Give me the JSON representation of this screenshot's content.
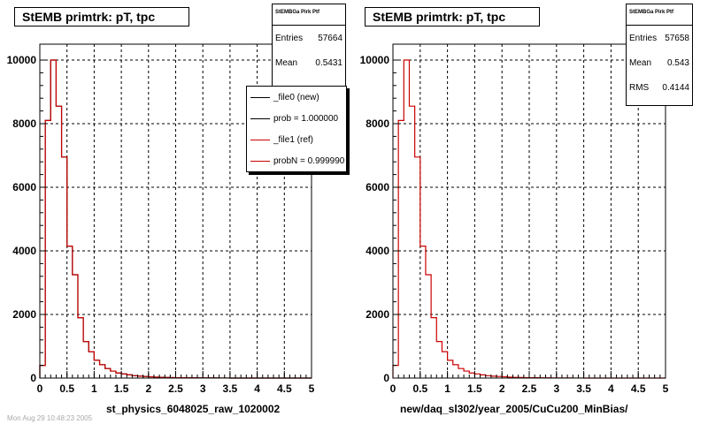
{
  "panels": [
    {
      "title": "StEMB primtrk: pT, tpc",
      "xlabel": "st_physics_6048025_raw_1020002",
      "stats": {
        "name": "StEMBGa Pirk Ptf",
        "rows": [
          {
            "label": "Entries",
            "value": "57664"
          },
          {
            "label": "Mean",
            "value": "0.5431"
          }
        ]
      },
      "legend": [
        {
          "label": "_file0 (new)",
          "color": "#000000"
        },
        {
          "label": "prob = 1.000000",
          "color": "#000000"
        },
        {
          "label": "_file1 (ref)",
          "color": "#cc0000"
        },
        {
          "label": "probN = 0.999990",
          "color": "#cc0000"
        }
      ]
    },
    {
      "title": "StEMB primtrk: pT, tpc",
      "xlabel": "new/daq_sl302/year_2005/CuCu200_MinBias/",
      "stats": {
        "name": "StEMBGa Pirk Ptf",
        "rows": [
          {
            "label": "Entries",
            "value": "57658"
          },
          {
            "label": "Mean",
            "value": "0.543"
          },
          {
            "label": "RMS",
            "value": "0.4144"
          }
        ]
      },
      "legend": []
    }
  ],
  "footer": "Mon Aug 29 10:48:23 2005",
  "chart_data": [
    {
      "type": "histogram",
      "title": "StEMB primtrk: pT, tpc",
      "xlabel": "st_physics_6048025_raw_1020002",
      "ylabel": "",
      "xlim": [
        0,
        5
      ],
      "ylim": [
        0,
        10000
      ],
      "xticks": [
        "0",
        "0.5",
        "1",
        "1.5",
        "2",
        "2.5",
        "3",
        "3.5",
        "4",
        "4.5",
        "5"
      ],
      "yticks": [
        "0",
        "2000",
        "4000",
        "6000",
        "8000",
        "10000"
      ],
      "grid": true,
      "bin_width": 0.1,
      "series": [
        {
          "name": "_file0 (new)",
          "color": "#000000",
          "values": [
            400,
            8100,
            10000,
            8550,
            6950,
            4150,
            3250,
            1900,
            1150,
            830,
            560,
            420,
            300,
            220,
            160,
            130,
            100,
            75,
            60,
            50,
            40,
            30,
            22,
            18,
            15,
            12,
            10,
            8,
            6,
            5,
            4,
            3,
            3,
            2,
            2,
            1,
            1,
            1,
            1,
            0,
            0,
            0,
            0,
            0,
            0,
            0,
            0,
            0,
            0,
            0
          ]
        },
        {
          "name": "_file1 (ref)",
          "color": "#cc0000",
          "values": [
            400,
            8100,
            10000,
            8550,
            6950,
            4150,
            3250,
            1900,
            1150,
            830,
            560,
            420,
            300,
            220,
            160,
            130,
            100,
            75,
            60,
            50,
            40,
            30,
            22,
            18,
            15,
            12,
            10,
            8,
            6,
            5,
            4,
            3,
            3,
            2,
            2,
            1,
            1,
            1,
            1,
            0,
            0,
            0,
            0,
            0,
            0,
            0,
            0,
            0,
            0,
            0
          ]
        }
      ]
    },
    {
      "type": "histogram",
      "title": "StEMB primtrk: pT, tpc",
      "xlabel": "new/daq_sl302/year_2005/CuCu200_MinBias/",
      "ylabel": "",
      "xlim": [
        0,
        5
      ],
      "ylim": [
        0,
        10000
      ],
      "xticks": [
        "0",
        "0.5",
        "1",
        "1.5",
        "2",
        "2.5",
        "3",
        "3.5",
        "4",
        "4.5",
        "5"
      ],
      "yticks": [
        "0",
        "2000",
        "4000",
        "6000",
        "8000",
        "10000"
      ],
      "grid": true,
      "bin_width": 0.1,
      "series": [
        {
          "name": "",
          "color": "#cc0000",
          "values": [
            400,
            8100,
            10000,
            8550,
            6950,
            4150,
            3250,
            1900,
            1150,
            830,
            560,
            420,
            300,
            220,
            160,
            130,
            100,
            75,
            60,
            50,
            40,
            30,
            22,
            18,
            15,
            12,
            10,
            8,
            6,
            5,
            4,
            3,
            3,
            2,
            2,
            1,
            1,
            1,
            1,
            0,
            0,
            0,
            0,
            0,
            0,
            0,
            0,
            0,
            0,
            0
          ]
        }
      ]
    }
  ]
}
